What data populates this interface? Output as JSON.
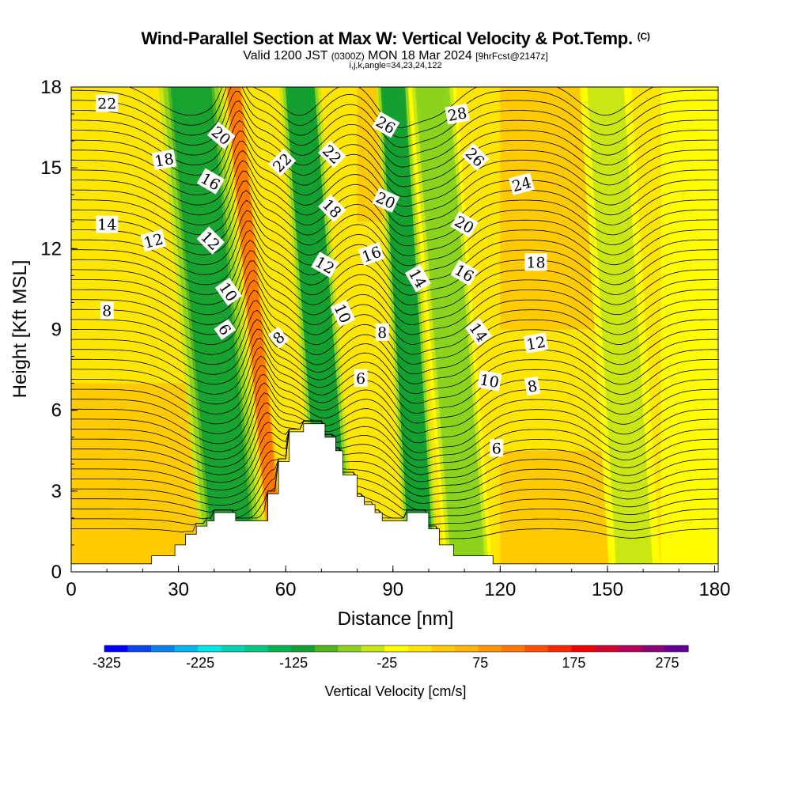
{
  "header": {
    "title": "Wind-Parallel Section at Max W: Vertical Velocity & Pot.Temp.",
    "title_mark": "(C)",
    "valid_prefix": "Valid 1200 JST",
    "valid_utc": "(0300Z)",
    "valid_date": "MON 18 Mar 2024",
    "forecast_info": "[9hrFcst@2147z]",
    "indices": "i,j,k,angle=34,23,24,122"
  },
  "chart_data": {
    "type": "heatmap",
    "xlabel": "Distance [nm]",
    "ylabel": "Height [Kft MSL]",
    "xlim": [
      0,
      181
    ],
    "ylim": [
      0,
      18
    ],
    "x_ticks": [
      0,
      30,
      60,
      90,
      120,
      150,
      180
    ],
    "y_ticks": [
      0,
      3,
      6,
      9,
      12,
      15,
      18
    ],
    "colorbar": {
      "title": "Vertical Velocity [cm/s]",
      "min": -325,
      "max": 300,
      "step": 25,
      "tick_labels": [
        -325,
        -225,
        -125,
        -25,
        75,
        175,
        275
      ],
      "colors": [
        "#0000ff",
        "#0a46f0",
        "#0a82ea",
        "#00b4f0",
        "#00e6e6",
        "#00d2b4",
        "#00c882",
        "#00b450",
        "#14a032",
        "#50b41e",
        "#8cd21e",
        "#c8e614",
        "#ffff00",
        "#ffe600",
        "#ffc800",
        "#ffb400",
        "#ff9600",
        "#ff7800",
        "#ff5000",
        "#ff2800",
        "#f00000",
        "#d20032",
        "#b4005a",
        "#8c0078",
        "#640096"
      ]
    },
    "vertical_velocity_bands": [
      {
        "x_start": 36,
        "x_end": 55,
        "z_top": 18,
        "value": -110,
        "sense": "downdraft",
        "tilt_nm": 12
      },
      {
        "x_start": 55,
        "x_end": 60,
        "z_top": 18,
        "value": 120,
        "sense": "updraft",
        "tilt_nm": 12
      },
      {
        "x_start": 68,
        "x_end": 80,
        "z_top": 18,
        "value": -120,
        "sense": "downdraft",
        "tilt_nm": 10
      },
      {
        "x_start": 93,
        "x_end": 103,
        "z_top": 18,
        "value": -120,
        "sense": "downdraft",
        "tilt_nm": 8
      },
      {
        "x_start": 104,
        "x_end": 118,
        "z_top": 18,
        "value": -70,
        "sense": "downdraft",
        "tilt_nm": 10
      },
      {
        "x_start": 150,
        "x_end": 165,
        "z_top": 18,
        "value": -40,
        "sense": "downdraft",
        "tilt_nm": 8
      }
    ],
    "terrain_profile_nm_kft": [
      [
        0,
        0.3
      ],
      [
        22.5,
        0.3
      ],
      [
        22.5,
        0.6
      ],
      [
        29,
        0.6
      ],
      [
        29,
        1
      ],
      [
        32,
        1
      ],
      [
        32,
        1.4
      ],
      [
        35,
        1.4
      ],
      [
        35,
        1.7
      ],
      [
        38,
        1.7
      ],
      [
        38,
        1.9
      ],
      [
        40,
        1.9
      ],
      [
        40,
        2.2
      ],
      [
        46,
        2.2
      ],
      [
        46,
        1.9
      ],
      [
        55,
        1.9
      ],
      [
        55,
        2.9
      ],
      [
        58,
        2.9
      ],
      [
        58,
        4.1
      ],
      [
        61,
        4.1
      ],
      [
        61,
        5.2
      ],
      [
        65,
        5.2
      ],
      [
        65,
        5.5
      ],
      [
        71,
        5.5
      ],
      [
        71,
        5.0
      ],
      [
        74,
        5.0
      ],
      [
        74,
        4.5
      ],
      [
        76,
        4.5
      ],
      [
        76,
        3.6
      ],
      [
        80,
        3.6
      ],
      [
        80,
        2.8
      ],
      [
        82,
        2.8
      ],
      [
        82,
        2.5
      ],
      [
        85,
        2.5
      ],
      [
        85,
        2.2
      ],
      [
        87,
        2.2
      ],
      [
        87,
        1.9
      ],
      [
        94,
        1.9
      ],
      [
        94,
        2.2
      ],
      [
        100,
        2.2
      ],
      [
        100,
        1.6
      ],
      [
        103,
        1.6
      ],
      [
        103,
        1.0
      ],
      [
        107,
        1.0
      ],
      [
        107,
        0.6
      ],
      [
        118,
        0.6
      ],
      [
        118,
        0.3
      ],
      [
        181,
        0.3
      ]
    ],
    "potential_temperature_labels": [
      {
        "text": "22",
        "x": 10,
        "z": 17.4,
        "angle": 0
      },
      {
        "text": "20",
        "x": 42,
        "z": 16.2,
        "angle": 40
      },
      {
        "text": "18",
        "x": 26,
        "z": 15.3,
        "angle": -10
      },
      {
        "text": "16",
        "x": 39,
        "z": 14.5,
        "angle": 30
      },
      {
        "text": "14",
        "x": 10,
        "z": 12.9,
        "angle": 0
      },
      {
        "text": "12",
        "x": 23,
        "z": 12.3,
        "angle": -15
      },
      {
        "text": "12",
        "x": 39,
        "z": 12.3,
        "angle": 45
      },
      {
        "text": "10",
        "x": 44,
        "z": 10.4,
        "angle": 55
      },
      {
        "text": "8",
        "x": 10,
        "z": 9.7,
        "angle": 0
      },
      {
        "text": "6",
        "x": 43,
        "z": 9.0,
        "angle": 55
      },
      {
        "text": "22",
        "x": 59,
        "z": 15.2,
        "angle": -45
      },
      {
        "text": "8",
        "x": 58,
        "z": 8.7,
        "angle": -40
      },
      {
        "text": "22",
        "x": 73,
        "z": 15.5,
        "angle": 45
      },
      {
        "text": "18",
        "x": 73,
        "z": 13.5,
        "angle": 45
      },
      {
        "text": "12",
        "x": 71,
        "z": 11.4,
        "angle": 30
      },
      {
        "text": "10",
        "x": 76,
        "z": 9.6,
        "angle": 65
      },
      {
        "text": "26",
        "x": 88,
        "z": 16.6,
        "angle": 30
      },
      {
        "text": "20",
        "x": 88,
        "z": 13.8,
        "angle": 25
      },
      {
        "text": "16",
        "x": 84,
        "z": 11.8,
        "angle": -20
      },
      {
        "text": "8",
        "x": 87,
        "z": 8.9,
        "angle": 0
      },
      {
        "text": "6",
        "x": 81,
        "z": 7.2,
        "angle": 0
      },
      {
        "text": "28",
        "x": 108,
        "z": 17.0,
        "angle": -10
      },
      {
        "text": "26",
        "x": 113,
        "z": 15.4,
        "angle": 45
      },
      {
        "text": "14",
        "x": 97,
        "z": 10.9,
        "angle": 60
      },
      {
        "text": "20",
        "x": 110,
        "z": 12.9,
        "angle": 30
      },
      {
        "text": "16",
        "x": 110,
        "z": 11.1,
        "angle": 30
      },
      {
        "text": "14",
        "x": 114,
        "z": 8.9,
        "angle": 55
      },
      {
        "text": "10",
        "x": 117,
        "z": 7.1,
        "angle": 10
      },
      {
        "text": "24",
        "x": 126,
        "z": 14.4,
        "angle": -15
      },
      {
        "text": "18",
        "x": 130,
        "z": 11.5,
        "angle": 0
      },
      {
        "text": "12",
        "x": 130,
        "z": 8.5,
        "angle": -10
      },
      {
        "text": "8",
        "x": 129,
        "z": 6.9,
        "angle": -10
      },
      {
        "text": "6",
        "x": 119,
        "z": 4.6,
        "angle": 0
      }
    ]
  }
}
